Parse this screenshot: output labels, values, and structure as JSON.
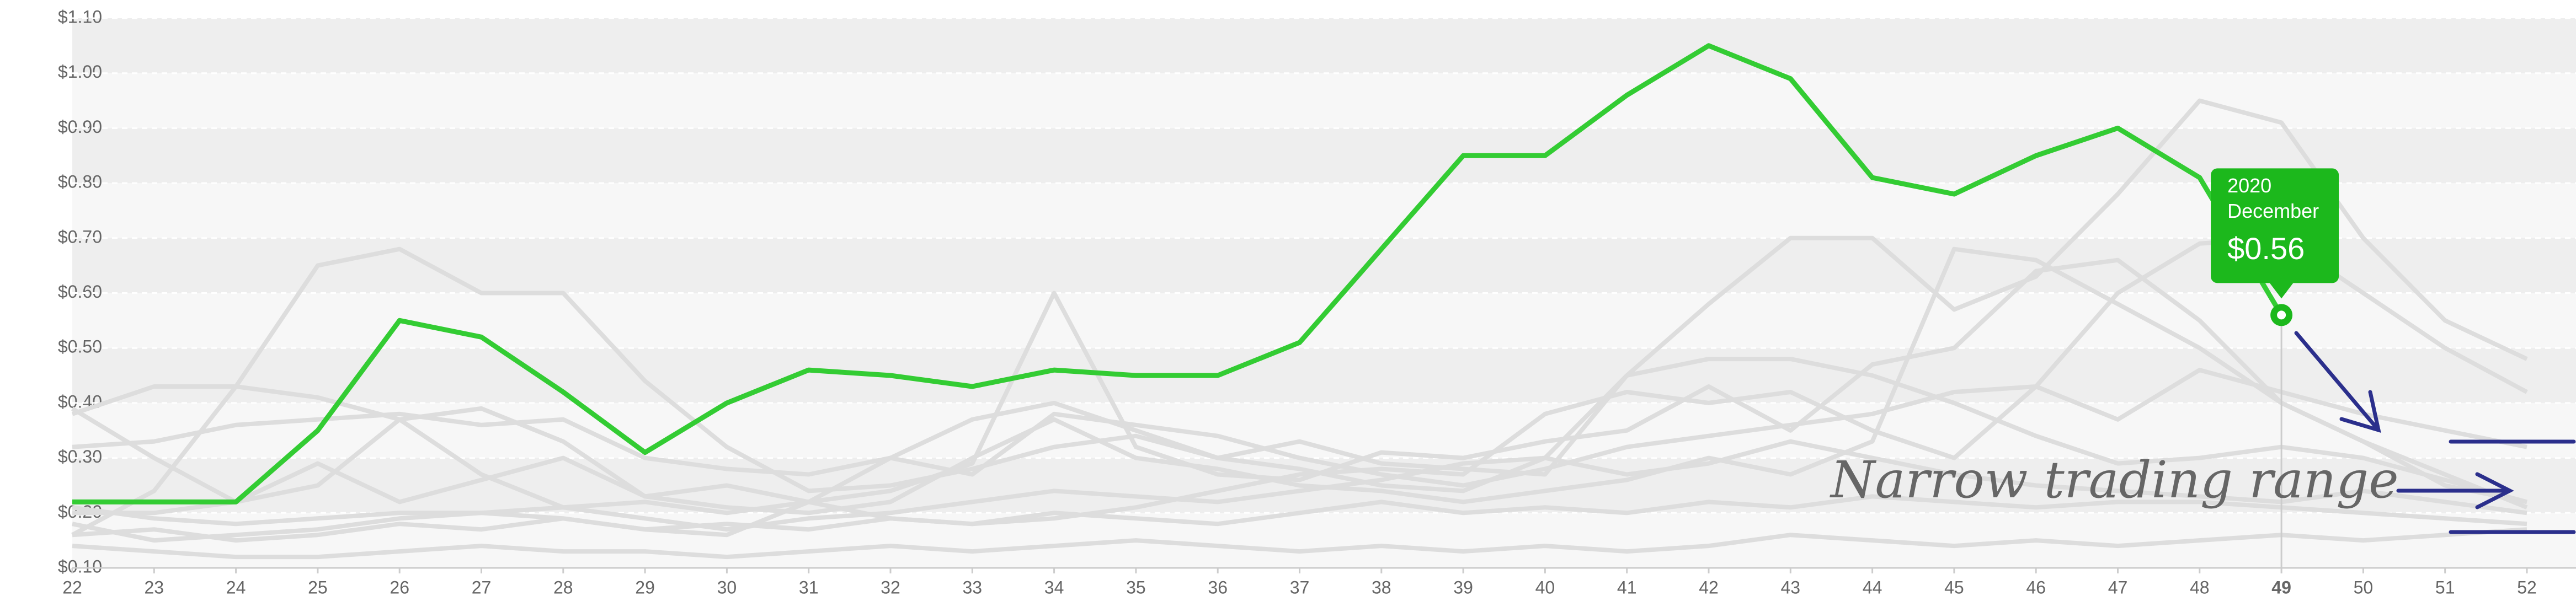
{
  "chart_data": {
    "type": "line",
    "categories": [
      "22",
      "23",
      "24",
      "25",
      "26",
      "27",
      "28",
      "29",
      "30",
      "31",
      "32",
      "33",
      "34",
      "35",
      "36",
      "37",
      "38",
      "39",
      "40",
      "41",
      "42",
      "43",
      "44",
      "45",
      "46",
      "47",
      "48",
      "49",
      "50",
      "51",
      "52"
    ],
    "series": [
      {
        "color": "#dddddd",
        "values": [
          0.39,
          0.3,
          0.22,
          0.25,
          0.37,
          0.39,
          0.33,
          0.23,
          0.21,
          0.2,
          0.22,
          0.3,
          0.37,
          0.3,
          0.28,
          0.25,
          0.24,
          0.22,
          0.24,
          0.26,
          0.3,
          0.27,
          0.33,
          0.68,
          0.66,
          0.58,
          0.5,
          0.4,
          0.33,
          0.25,
          0.22
        ]
      },
      {
        "color": "#dddddd",
        "values": [
          0.16,
          0.24,
          0.43,
          0.65,
          0.68,
          0.6,
          0.6,
          0.44,
          0.32,
          0.24,
          0.25,
          0.28,
          0.32,
          0.34,
          0.3,
          0.28,
          0.25,
          0.24,
          0.3,
          0.45,
          0.58,
          0.7,
          0.7,
          0.57,
          0.63,
          0.78,
          0.95,
          0.91,
          0.7,
          0.55,
          0.48
        ]
      },
      {
        "color": "#dddddd",
        "values": [
          0.32,
          0.33,
          0.36,
          0.37,
          0.38,
          0.36,
          0.37,
          0.3,
          0.28,
          0.27,
          0.3,
          0.27,
          0.38,
          0.36,
          0.34,
          0.3,
          0.27,
          0.25,
          0.28,
          0.32,
          0.34,
          0.36,
          0.38,
          0.42,
          0.43,
          0.6,
          0.69,
          0.7,
          0.6,
          0.5,
          0.42
        ]
      },
      {
        "color": "#dddddd",
        "values": [
          0.38,
          0.43,
          0.43,
          0.41,
          0.37,
          0.27,
          0.21,
          0.22,
          0.2,
          0.22,
          0.3,
          0.37,
          0.4,
          0.35,
          0.3,
          0.33,
          0.29,
          0.28,
          0.27,
          0.45,
          0.48,
          0.48,
          0.45,
          0.4,
          0.34,
          0.29,
          0.3,
          0.32,
          0.3,
          0.26,
          0.22
        ]
      },
      {
        "color": "#dddddd",
        "values": [
          0.2,
          0.2,
          0.22,
          0.29,
          0.22,
          0.26,
          0.3,
          0.23,
          0.25,
          0.22,
          0.24,
          0.29,
          0.6,
          0.32,
          0.27,
          0.26,
          0.31,
          0.3,
          0.33,
          0.35,
          0.43,
          0.35,
          0.47,
          0.5,
          0.64,
          0.66,
          0.55,
          0.4,
          0.33,
          0.27,
          0.21
        ]
      },
      {
        "color": "#dddddd",
        "values": [
          0.16,
          0.17,
          0.15,
          0.16,
          0.18,
          0.17,
          0.19,
          0.17,
          0.18,
          0.17,
          0.19,
          0.18,
          0.2,
          0.19,
          0.18,
          0.2,
          0.22,
          0.2,
          0.21,
          0.2,
          0.22,
          0.21,
          0.23,
          0.22,
          0.21,
          0.22,
          0.22,
          0.21,
          0.2,
          0.19,
          0.18
        ]
      },
      {
        "color": "#dddddd",
        "values": [
          0.18,
          0.15,
          0.16,
          0.17,
          0.19,
          0.2,
          0.21,
          0.19,
          0.17,
          0.19,
          0.2,
          0.22,
          0.24,
          0.23,
          0.22,
          0.24,
          0.26,
          0.29,
          0.3,
          0.27,
          0.29,
          0.33,
          0.3,
          0.27,
          0.25,
          0.24,
          0.23,
          0.22,
          0.24,
          0.22,
          0.2
        ]
      },
      {
        "color": "#dddddd",
        "values": [
          0.14,
          0.13,
          0.12,
          0.12,
          0.13,
          0.14,
          0.13,
          0.13,
          0.12,
          0.13,
          0.14,
          0.13,
          0.14,
          0.15,
          0.14,
          0.13,
          0.14,
          0.13,
          0.14,
          0.13,
          0.14,
          0.16,
          0.15,
          0.14,
          0.15,
          0.14,
          0.15,
          0.16,
          0.15,
          0.16,
          0.17
        ]
      },
      {
        "color": "#dddddd",
        "values": [
          0.21,
          0.19,
          0.18,
          0.19,
          0.2,
          0.2,
          0.19,
          0.17,
          0.16,
          0.22,
          0.19,
          0.18,
          0.19,
          0.21,
          0.24,
          0.27,
          0.28,
          0.27,
          0.38,
          0.42,
          0.4,
          0.42,
          0.35,
          0.3,
          0.43,
          0.37,
          0.46,
          0.42,
          0.38,
          0.35,
          0.32
        ]
      },
      {
        "color": "#33cc33",
        "values": [
          0.22,
          0.22,
          0.22,
          0.35,
          0.55,
          0.52,
          0.42,
          0.31,
          0.4,
          0.46,
          0.45,
          0.43,
          0.46,
          0.45,
          0.45,
          0.51,
          0.68,
          0.85,
          0.85,
          0.96,
          1.05,
          0.99,
          0.81,
          0.78,
          0.85,
          0.9,
          0.81,
          0.56,
          null,
          null,
          null
        ]
      }
    ],
    "ylim": [
      0.1,
      1.1
    ],
    "yticks": [
      {
        "value": 0.1,
        "label": "$0.10"
      },
      {
        "value": 0.2,
        "label": "$0.20"
      },
      {
        "value": 0.3,
        "label": "$0.30"
      },
      {
        "value": 0.4,
        "label": "$0.40"
      },
      {
        "value": 0.5,
        "label": "$0.50"
      },
      {
        "value": 0.6,
        "label": "$0.60"
      },
      {
        "value": 0.7,
        "label": "$0.70"
      },
      {
        "value": 0.8,
        "label": "$0.80"
      },
      {
        "value": 0.9,
        "label": "$0.90"
      },
      {
        "value": 1.0,
        "label": "$1.00"
      },
      {
        "value": 1.1,
        "label": "$1.10"
      }
    ],
    "grid": true,
    "tooltip": {
      "lines": [
        "2020",
        "December"
      ],
      "value": 0.56,
      "value_label": "$0.56",
      "color": "#1cb81c"
    },
    "annotation": "Narrow trading range"
  }
}
